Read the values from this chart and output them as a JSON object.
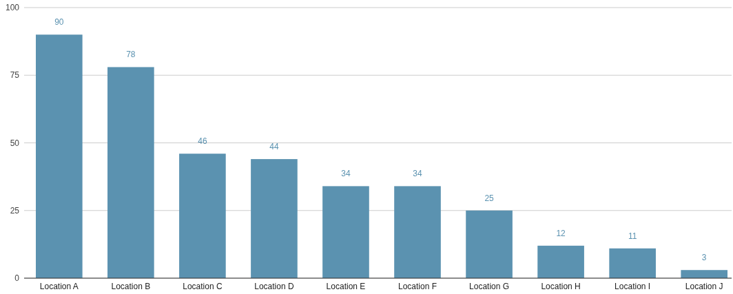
{
  "chart_data": {
    "type": "bar",
    "categories": [
      "Location A",
      "Location B",
      "Location C",
      "Location D",
      "Location E",
      "Location F",
      "Location G",
      "Location H",
      "Location I",
      "Location J"
    ],
    "values": [
      90,
      78,
      46,
      44,
      34,
      34,
      25,
      12,
      11,
      3
    ],
    "color": "#5b92b0",
    "ylim": [
      0,
      100
    ],
    "yticks": [
      0,
      25,
      50,
      75,
      100
    ],
    "grid": "y",
    "data_labels": true
  }
}
